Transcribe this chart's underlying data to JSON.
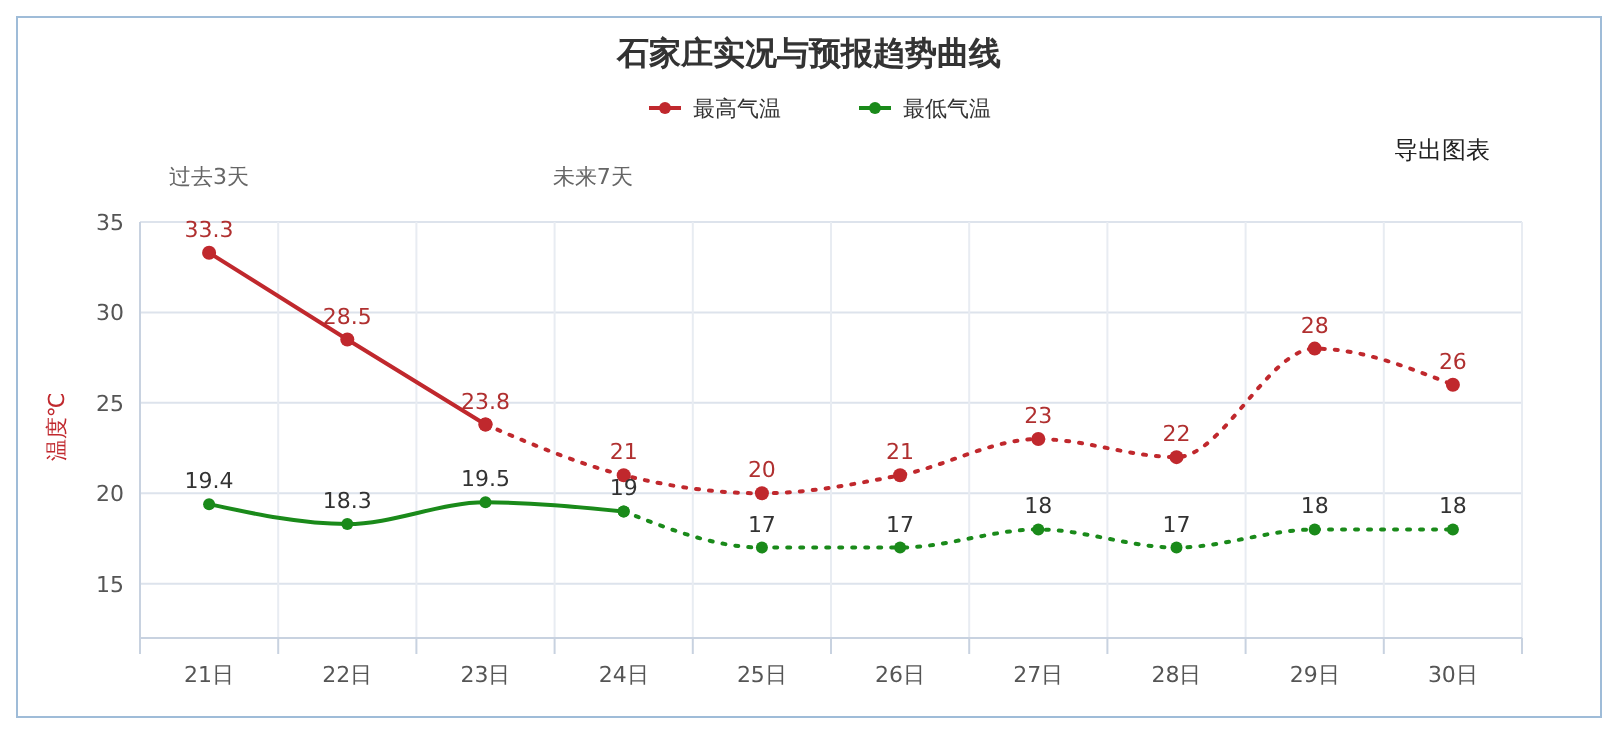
{
  "chart_data": {
    "type": "line",
    "title": "石家庄实况与预报趋势曲线",
    "ylabel": "温度℃",
    "annotations": [
      "过去3天",
      "未来7天",
      "导出图表"
    ],
    "categories": [
      "21日",
      "22日",
      "23日",
      "24日",
      "25日",
      "26日",
      "27日",
      "28日",
      "29日",
      "30日"
    ],
    "series": [
      {
        "name": "最高气温",
        "color": "#c0282d",
        "line_style": "solid",
        "values": [
          33.3,
          28.5,
          23.8,
          null,
          null,
          null,
          null,
          null,
          null,
          null
        ]
      },
      {
        "color": "#c0282d",
        "line_style": "dotted",
        "values": [
          null,
          null,
          23.8,
          21,
          20,
          21,
          23,
          22,
          28,
          26
        ],
        "value_labels": [
          null,
          null,
          null,
          "21",
          "20",
          "21",
          "23",
          "22",
          "28",
          "26"
        ]
      },
      {
        "name": "最低气温",
        "color": "#1a8a1a",
        "line_style": "solid",
        "values": [
          19.4,
          18.3,
          19.5,
          19,
          null,
          null,
          null,
          null,
          null,
          null
        ]
      },
      {
        "color": "#1a8a1a",
        "line_style": "dotted",
        "values": [
          null,
          null,
          null,
          19,
          17,
          17,
          18,
          17,
          18,
          18
        ],
        "value_labels": [
          null,
          null,
          null,
          null,
          "17",
          "17",
          "18",
          "17",
          "18",
          "18"
        ]
      }
    ],
    "ylim": [
      12,
      35
    ],
    "yticks": [
      15,
      20,
      25,
      30,
      35
    ],
    "grid": true,
    "legend": "top",
    "marker": "circle",
    "data_labels": true
  }
}
